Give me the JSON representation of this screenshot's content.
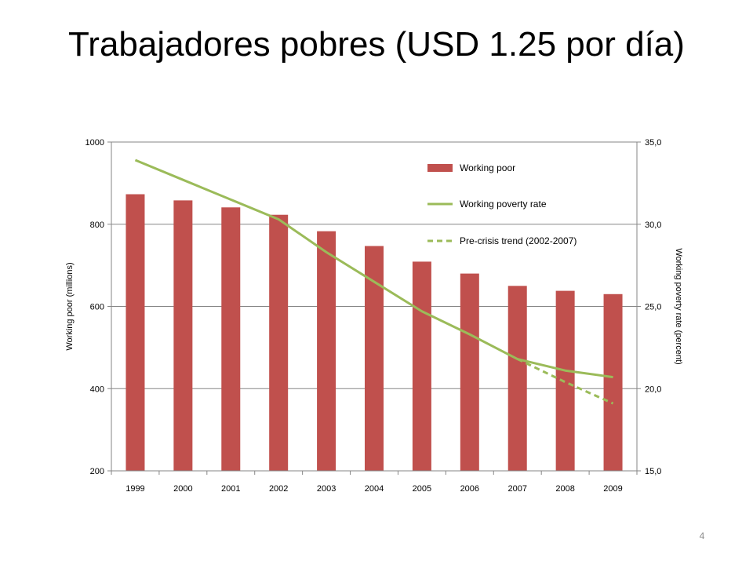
{
  "slide": {
    "title": "Trabajadores pobres (USD 1.25 por día)",
    "page_number": "4"
  },
  "chart_data": {
    "type": "bar",
    "categories": [
      "1999",
      "2000",
      "2001",
      "2002",
      "2003",
      "2004",
      "2005",
      "2006",
      "2007",
      "2008",
      "2009"
    ],
    "y_label": "Working poor (millions)",
    "y2_label": "Working poverty rate (percent)",
    "ylim": [
      200,
      1000
    ],
    "y_ticks": [
      "200",
      "400",
      "600",
      "800",
      "1000"
    ],
    "y2lim": [
      15,
      35
    ],
    "y2_ticks": [
      "15,0",
      "20,0",
      "25,0",
      "30,0",
      "35,0"
    ],
    "grid": true,
    "legend_position": "top-right inside plot",
    "series": [
      {
        "name": "Working poor",
        "type": "bar",
        "axis": "left",
        "color": "#c0504d",
        "values": [
          873,
          858,
          841,
          823,
          783,
          747,
          709,
          680,
          650,
          638,
          630
        ]
      },
      {
        "name": "Working poverty rate",
        "type": "line",
        "axis": "right",
        "color": "#9bbb59",
        "values": [
          33.9,
          32.7,
          31.5,
          30.3,
          28.3,
          26.5,
          24.7,
          23.3,
          21.8,
          21.1,
          20.7
        ]
      },
      {
        "name": "Pre-crisis trend (2002-2007)",
        "type": "line-dashed",
        "axis": "right",
        "color": "#9bbb59",
        "x": [
          "2007",
          "2008",
          "2009"
        ],
        "values": [
          21.8,
          20.4,
          19.1
        ]
      }
    ]
  }
}
